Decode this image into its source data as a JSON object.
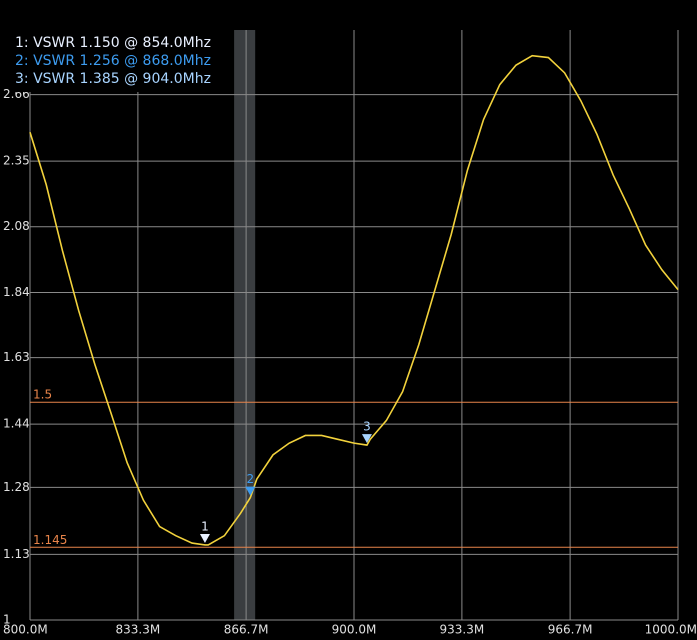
{
  "chart_data": {
    "type": "line",
    "xlim": [
      800,
      1000
    ],
    "xticks": [
      {
        "value": 800,
        "label": "800.0M"
      },
      {
        "value": 833.3,
        "label": "833.3M"
      },
      {
        "value": 866.7,
        "label": "866.7M"
      },
      {
        "value": 900,
        "label": "900.0M"
      },
      {
        "value": 933.3,
        "label": "933.3M"
      },
      {
        "value": 966.7,
        "label": "966.7M"
      },
      {
        "value": 1000,
        "label": "1000.0M"
      }
    ],
    "ylim": [
      1,
      3
    ],
    "ylog": true,
    "yticks": [
      1,
      1.13,
      1.28,
      1.44,
      1.63,
      1.84,
      2.08,
      2.35,
      2.66
    ],
    "grid": true,
    "highlight": [
      863,
      869.5
    ],
    "reference_lines": [
      {
        "label": "1.5",
        "value": 1.5,
        "color": "#e8844a"
      },
      {
        "label": "1.145",
        "value": 1.145,
        "color": "#e8844a"
      }
    ],
    "series": [
      {
        "name": "VSWR",
        "color": "#f2d23c",
        "x": [
          800,
          805,
          810,
          815,
          820,
          825,
          830,
          835,
          840,
          845,
          850,
          854,
          855,
          860,
          865,
          868,
          870,
          875,
          880,
          885,
          890,
          895,
          900,
          904,
          905,
          910,
          915,
          920,
          925,
          930,
          935,
          940,
          945,
          950,
          955,
          960,
          965,
          970,
          975,
          980,
          985,
          990,
          995,
          1000
        ],
        "values": [
          2.48,
          2.25,
          1.99,
          1.78,
          1.61,
          1.47,
          1.34,
          1.25,
          1.19,
          1.17,
          1.154,
          1.15,
          1.15,
          1.17,
          1.22,
          1.256,
          1.3,
          1.36,
          1.39,
          1.41,
          1.41,
          1.4,
          1.39,
          1.385,
          1.4,
          1.45,
          1.53,
          1.67,
          1.85,
          2.05,
          2.31,
          2.54,
          2.71,
          2.81,
          2.86,
          2.85,
          2.77,
          2.63,
          2.47,
          2.29,
          2.15,
          2.01,
          1.92,
          1.85
        ]
      }
    ],
    "markers": [
      {
        "id": "1",
        "label": "1: VSWR 1.150 @ 854.0Mhz",
        "x": 854,
        "value": 1.15,
        "color": "#e8f0ff"
      },
      {
        "id": "2",
        "label": "2: VSWR 1.256 @ 868.0Mhz",
        "x": 868,
        "value": 1.256,
        "color": "#3d9cf0"
      },
      {
        "id": "3",
        "label": "3: VSWR 1.385 @ 904.0Mhz",
        "x": 904,
        "value": 1.385,
        "color": "#a8d4ff"
      }
    ]
  }
}
